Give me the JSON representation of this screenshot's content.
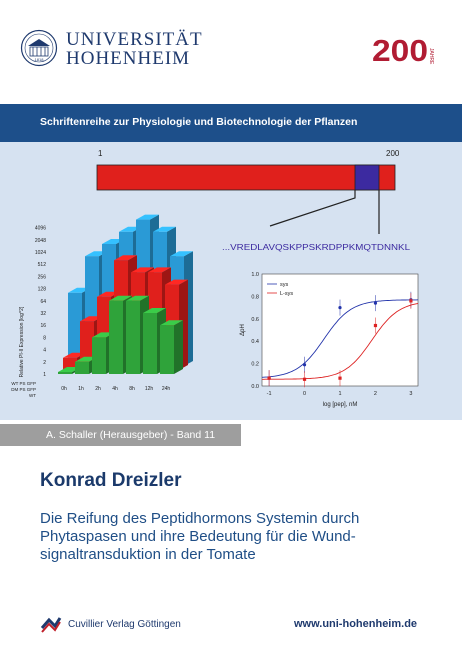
{
  "header": {
    "university_line1": "UNIVERSITÄT",
    "university_line2": "HOHENHEIM",
    "seal_year": "1818",
    "anniversary_number": "200",
    "anniversary_years": "1818 2018",
    "anniversary_word": "JAHRE"
  },
  "series": "Schriftenreihe zur Physiologie und Biotechnologie der Pflanzen",
  "figure": {
    "protein_bar": {
      "start_label": "1",
      "end_label": "200",
      "sequence": "...VREDLAVQSKPPSKRDPPKMQTDNNKL"
    },
    "bar3d": {
      "ylabel": "Relative PI-II Expression [log^2]",
      "y_ticks": [
        "4096",
        "2048",
        "1024",
        "512",
        "256",
        "128",
        "64",
        "32",
        "16",
        "8",
        "4",
        "2",
        "1"
      ],
      "time_labels": [
        "0h",
        "1h",
        "2h",
        "4h",
        "8h",
        "12h",
        "24h"
      ],
      "row_labels": [
        "WT PS GFP",
        "DM PS GFP",
        "WT"
      ]
    },
    "curve": {
      "ylabel": "ΔpH",
      "xlabel": "log [pep], nM",
      "y_ticks": [
        "1.0",
        "0.8",
        "0.6",
        "0.4",
        "0.2",
        "0.0"
      ],
      "x_ticks": [
        "-1",
        "0",
        "1",
        "2",
        "3"
      ],
      "legend": [
        "sys",
        "L-sys"
      ]
    }
  },
  "chart_data": [
    {
      "type": "bar",
      "ylabel": "Relative PI-II Expression [log^2]",
      "scale": "log2",
      "categories": [
        "0h",
        "1h",
        "2h",
        "4h",
        "8h",
        "12h",
        "24h"
      ],
      "series": [
        {
          "name": "WT PS GFP",
          "values": [
            64,
            512,
            1024,
            2048,
            4096,
            2048,
            512
          ]
        },
        {
          "name": "DM PS GFP",
          "values": [
            2,
            16,
            64,
            512,
            256,
            256,
            128
          ]
        },
        {
          "name": "WT",
          "values": [
            1,
            2,
            8,
            64,
            64,
            32,
            16
          ]
        }
      ]
    },
    {
      "type": "scatter",
      "xlabel": "log [pep], nM",
      "ylabel": "ΔpH",
      "xlim": [
        -1.2,
        3.2
      ],
      "ylim": [
        0,
        1.0
      ],
      "series": [
        {
          "name": "sys",
          "x": [
            -1,
            0,
            1,
            2,
            3
          ],
          "y": [
            0.07,
            0.19,
            0.7,
            0.74,
            0.77
          ],
          "color": "#2233aa"
        },
        {
          "name": "L-sys",
          "x": [
            -1,
            0,
            1,
            2,
            3
          ],
          "y": [
            0.07,
            0.06,
            0.07,
            0.54,
            0.76
          ],
          "color": "#dd2222"
        }
      ]
    }
  ],
  "editor": "A. Schaller (Herausgeber) - Band 11",
  "author": "Konrad Dreizler",
  "title": "Die Reifung des Peptidhormons Systemin durch Phytaspasen und ihre Bedeutung für die Wund­signaltransduktion in der Tomate",
  "publisher": "Cuvillier Verlag Göttingen",
  "url": "www.uni-hohenheim.de",
  "colors": {
    "navy": "#1d4f8a",
    "panel": "#d6e2f1",
    "red": "#e0201c",
    "blue": "#2a9ad6",
    "green": "#2fa33a",
    "purple": "#3c2aa0",
    "gray_bar": "#9e9e9e"
  }
}
